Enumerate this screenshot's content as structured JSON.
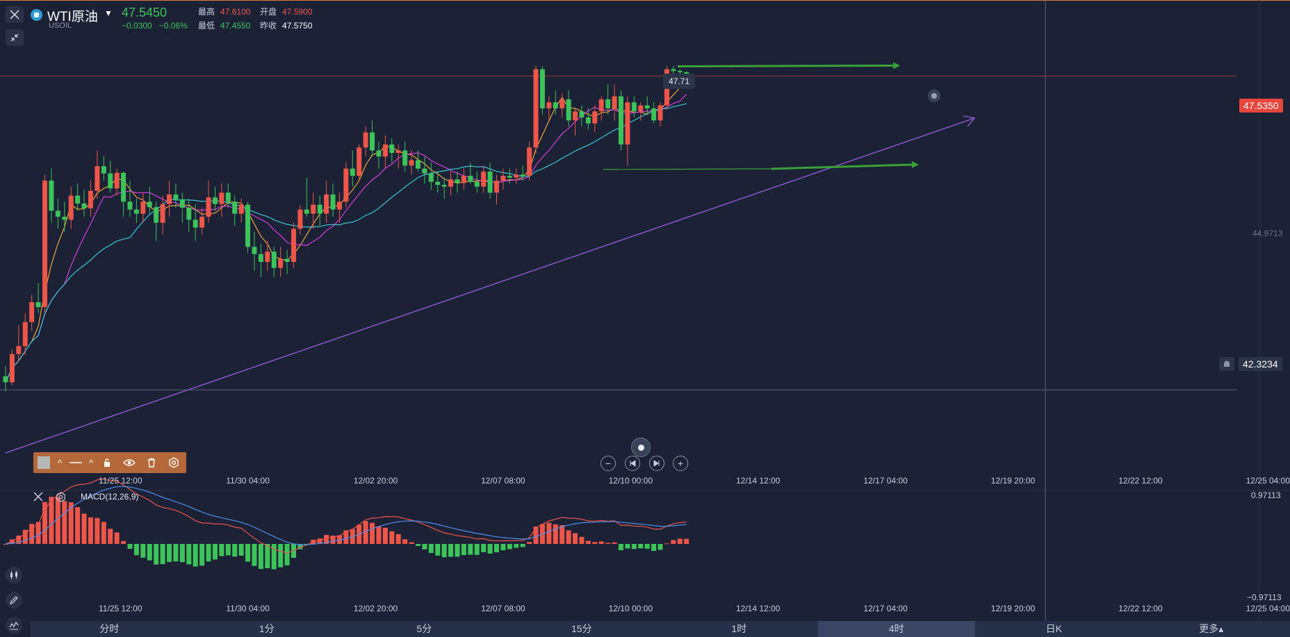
{
  "symbol": {
    "name": "WTI原油",
    "code": "USOIL",
    "last": "47.5450",
    "change": "−0.0300",
    "change_pct": "−0.06%",
    "high_label": "最高",
    "high": "47.6100",
    "open_label": "开盘",
    "open": "47.5900",
    "low_label": "最低",
    "low": "47.4550",
    "prev_close_label": "昨收",
    "prev_close": "47.5750"
  },
  "price_axis": {
    "current": "47.5350",
    "mid": "44.9713",
    "crosshair": "42.3234",
    "high_marker": "47.71"
  },
  "macd": {
    "label": "MACD(12,26,9)",
    "axis_top": "0.97113",
    "axis_bottom": "−0.97113"
  },
  "time_axis": [
    "11/25 12:00",
    "11/30 04:00",
    "12/02 20:00",
    "12/07 08:00",
    "12/10 00:00",
    "12/14 12:00",
    "12/17 04:00",
    "12/19 20:00",
    "12/22 12:00",
    "12/25 04:00"
  ],
  "timeframes": [
    {
      "label": "分时",
      "active": false
    },
    {
      "label": "1分",
      "active": false
    },
    {
      "label": "5分",
      "active": false
    },
    {
      "label": "15分",
      "active": false
    },
    {
      "label": "1时",
      "active": false
    },
    {
      "label": "4时",
      "active": true
    },
    {
      "label": "日K",
      "active": false
    },
    {
      "label": "更多▴",
      "active": false
    }
  ],
  "colors": {
    "up": "#f0554a",
    "down": "#3cc35a",
    "background": "#1c2235",
    "ma_fast": "#f0a33c",
    "ma_mid": "#d63ce0",
    "ma_slow": "#3cc8d6",
    "trendline": "#9b5ce0",
    "arrow": "#3aa03a",
    "macd_dif": "#f0554a",
    "macd_dea": "#4f8df0"
  },
  "chart_data": {
    "type": "candlestick",
    "timeframe": "4时",
    "candles": [
      [
        42.55,
        42.72,
        42.3,
        42.45
      ],
      [
        42.45,
        43.0,
        42.4,
        42.92
      ],
      [
        42.92,
        43.4,
        42.8,
        43.05
      ],
      [
        43.05,
        43.6,
        42.9,
        43.45
      ],
      [
        43.45,
        43.9,
        43.3,
        43.78
      ],
      [
        43.78,
        44.1,
        43.6,
        43.7
      ],
      [
        43.7,
        45.9,
        43.6,
        45.8
      ],
      [
        45.8,
        46.0,
        45.1,
        45.3
      ],
      [
        45.3,
        45.5,
        45.0,
        45.2
      ],
      [
        45.2,
        45.45,
        44.95,
        45.15
      ],
      [
        45.15,
        45.7,
        45.0,
        45.55
      ],
      [
        45.55,
        45.75,
        45.3,
        45.42
      ],
      [
        45.42,
        45.65,
        45.2,
        45.34
      ],
      [
        45.34,
        45.8,
        45.2,
        45.63
      ],
      [
        45.63,
        46.3,
        45.5,
        46.04
      ],
      [
        46.04,
        46.2,
        45.8,
        45.92
      ],
      [
        45.92,
        46.13,
        45.6,
        45.67
      ],
      [
        45.67,
        46.0,
        45.55,
        45.93
      ],
      [
        45.93,
        45.95,
        45.2,
        45.45
      ],
      [
        45.45,
        45.8,
        45.2,
        45.32
      ],
      [
        45.32,
        45.5,
        45.1,
        45.25
      ],
      [
        45.25,
        45.6,
        45.1,
        45.45
      ],
      [
        45.45,
        45.7,
        45.25,
        45.36
      ],
      [
        45.36,
        45.45,
        44.8,
        45.1
      ],
      [
        45.1,
        45.55,
        44.9,
        45.41
      ],
      [
        45.41,
        45.8,
        45.2,
        45.57
      ],
      [
        45.57,
        45.75,
        45.35,
        45.49
      ],
      [
        45.49,
        45.6,
        45.1,
        45.35
      ],
      [
        45.35,
        45.5,
        44.95,
        45.15
      ],
      [
        45.15,
        45.4,
        44.8,
        45.02
      ],
      [
        45.02,
        45.35,
        44.9,
        45.2
      ],
      [
        45.2,
        45.8,
        45.1,
        45.52
      ],
      [
        45.52,
        45.7,
        45.3,
        45.41
      ],
      [
        45.41,
        45.75,
        45.2,
        45.6
      ],
      [
        45.6,
        45.75,
        45.35,
        45.45
      ],
      [
        45.45,
        45.55,
        45.05,
        45.25
      ],
      [
        45.25,
        45.5,
        45.1,
        45.4
      ],
      [
        45.4,
        45.45,
        44.6,
        44.7
      ],
      [
        44.7,
        44.95,
        44.3,
        44.58
      ],
      [
        44.58,
        44.75,
        44.2,
        44.45
      ],
      [
        44.45,
        44.8,
        44.3,
        44.62
      ],
      [
        44.62,
        44.7,
        44.2,
        44.35
      ],
      [
        44.35,
        44.7,
        44.2,
        44.5
      ],
      [
        44.5,
        44.65,
        44.25,
        44.45
      ],
      [
        44.45,
        45.1,
        44.35,
        45.0
      ],
      [
        45.0,
        45.4,
        44.9,
        45.32
      ],
      [
        45.32,
        45.85,
        45.2,
        45.25
      ],
      [
        45.25,
        45.6,
        45.0,
        45.4
      ],
      [
        45.4,
        45.55,
        45.05,
        45.25
      ],
      [
        45.25,
        45.8,
        45.1,
        45.57
      ],
      [
        45.57,
        45.75,
        45.2,
        45.32
      ],
      [
        45.32,
        45.6,
        45.1,
        45.45
      ],
      [
        45.45,
        46.1,
        45.35,
        46.0
      ],
      [
        46.0,
        46.3,
        45.7,
        45.88
      ],
      [
        45.88,
        46.4,
        45.8,
        46.35
      ],
      [
        46.35,
        46.7,
        46.2,
        46.6
      ],
      [
        46.6,
        46.8,
        46.2,
        46.3
      ],
      [
        46.3,
        46.45,
        46.0,
        46.2
      ],
      [
        46.2,
        46.55,
        46.0,
        46.4
      ],
      [
        46.4,
        46.5,
        46.1,
        46.26
      ],
      [
        46.26,
        46.4,
        46.0,
        46.3
      ],
      [
        46.3,
        46.45,
        45.95,
        46.05
      ],
      [
        46.05,
        46.3,
        45.9,
        46.14
      ],
      [
        46.14,
        46.3,
        45.95,
        46.0
      ],
      [
        46.0,
        46.2,
        45.75,
        45.92
      ],
      [
        45.92,
        46.1,
        45.65,
        45.78
      ],
      [
        45.78,
        45.95,
        45.6,
        45.73
      ],
      [
        45.73,
        45.85,
        45.5,
        45.7
      ],
      [
        45.7,
        45.95,
        45.55,
        45.82
      ],
      [
        45.82,
        45.95,
        45.6,
        45.76
      ],
      [
        45.76,
        46.0,
        45.65,
        45.88
      ],
      [
        45.88,
        46.1,
        45.75,
        45.78
      ],
      [
        45.78,
        45.95,
        45.6,
        45.7
      ],
      [
        45.7,
        46.05,
        45.6,
        45.95
      ],
      [
        45.95,
        46.1,
        45.5,
        45.6
      ],
      [
        45.6,
        45.9,
        45.4,
        45.8
      ],
      [
        45.8,
        46.0,
        45.65,
        45.88
      ],
      [
        45.88,
        46.0,
        45.75,
        45.85
      ],
      [
        45.85,
        46.0,
        45.75,
        45.9
      ],
      [
        45.9,
        46.05,
        45.8,
        45.88
      ],
      [
        45.88,
        46.45,
        45.8,
        46.35
      ],
      [
        46.35,
        47.71,
        46.25,
        47.65
      ],
      [
        47.65,
        47.7,
        46.9,
        47.0
      ],
      [
        47.0,
        47.2,
        46.8,
        47.1
      ],
      [
        47.1,
        47.3,
        46.9,
        47.0
      ],
      [
        47.0,
        47.25,
        46.85,
        47.15
      ],
      [
        47.15,
        47.3,
        46.7,
        46.8
      ],
      [
        46.8,
        47.0,
        46.55,
        46.95
      ],
      [
        46.95,
        47.05,
        46.7,
        46.85
      ],
      [
        46.85,
        47.0,
        46.65,
        46.75
      ],
      [
        46.75,
        47.05,
        46.6,
        46.95
      ],
      [
        46.95,
        47.2,
        46.8,
        47.15
      ],
      [
        47.15,
        47.4,
        46.9,
        47.0
      ],
      [
        47.0,
        47.4,
        46.8,
        47.2
      ],
      [
        47.2,
        47.3,
        46.3,
        46.4
      ],
      [
        46.4,
        47.2,
        46.05,
        47.1
      ],
      [
        47.1,
        47.2,
        46.85,
        46.95
      ],
      [
        46.95,
        47.1,
        46.8,
        47.05
      ],
      [
        47.05,
        47.2,
        46.9,
        47.0
      ],
      [
        47.0,
        47.1,
        46.75,
        46.8
      ],
      [
        46.8,
        47.1,
        46.7,
        47.05
      ],
      [
        47.05,
        47.7,
        47.0,
        47.65
      ],
      [
        47.65,
        47.7,
        47.5,
        47.62
      ],
      [
        47.62,
        47.65,
        47.45,
        47.6
      ],
      [
        47.6,
        47.62,
        47.5,
        47.55
      ]
    ],
    "annotations": {
      "high_marker": 47.71,
      "current_price": 47.535,
      "crosshair_price": 42.3234
    },
    "ylim": [
      41.3,
      48.8
    ],
    "macd_range": [
      -0.97113,
      0.97113
    ]
  }
}
